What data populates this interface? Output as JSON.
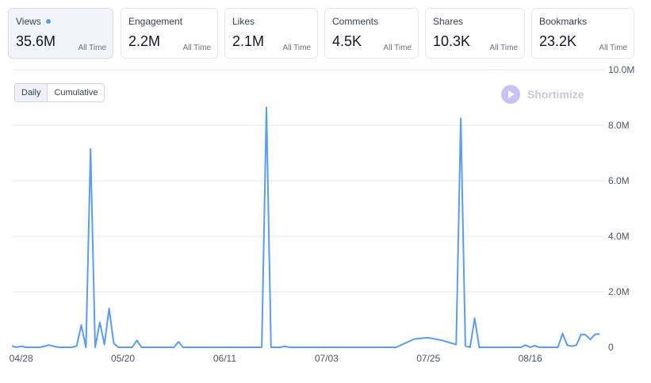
{
  "metrics": [
    {
      "label": "Views",
      "value": "35.6M",
      "period": "All Time",
      "active": true
    },
    {
      "label": "Engagement",
      "value": "2.2M",
      "period": "All Time",
      "active": false
    },
    {
      "label": "Likes",
      "value": "2.1M",
      "period": "All Time",
      "active": false
    },
    {
      "label": "Comments",
      "value": "4.5K",
      "period": "All Time",
      "active": false
    },
    {
      "label": "Shares",
      "value": "10.3K",
      "period": "All Time",
      "active": false
    },
    {
      "label": "Bookmarks",
      "value": "23.2K",
      "period": "All Time",
      "active": false
    }
  ],
  "toggle": {
    "daily": "Daily",
    "cumulative": "Cumulative",
    "selected": "Daily"
  },
  "watermark": {
    "text": "Shortimize"
  },
  "colors": {
    "line": "#5b9cf0",
    "accent_dot": "#5b9cf0",
    "grid": "#e5e7eb"
  },
  "chart_data": {
    "type": "line",
    "title": "",
    "xlabel": "",
    "ylabel": "",
    "ylim": [
      0,
      10000000
    ],
    "yticks": [
      {
        "value": 0,
        "label": "0"
      },
      {
        "value": 2000000,
        "label": "2.0M"
      },
      {
        "value": 4000000,
        "label": "4.0M"
      },
      {
        "value": 6000000,
        "label": "6.0M"
      },
      {
        "value": 8000000,
        "label": "8.0M"
      },
      {
        "value": 10000000,
        "label": "10.0M"
      }
    ],
    "xlim": [
      "2024-04-26",
      "2024-09-01"
    ],
    "xticks": [
      {
        "date": "2024-04-28",
        "label": "04/28"
      },
      {
        "date": "2024-05-20",
        "label": "05/20"
      },
      {
        "date": "2024-06-11",
        "label": "06/11"
      },
      {
        "date": "2024-07-03",
        "label": "07/03"
      },
      {
        "date": "2024-07-25",
        "label": "07/25"
      },
      {
        "date": "2024-08-16",
        "label": "08/16"
      }
    ],
    "grid": true,
    "series": [
      {
        "name": "",
        "points": [
          [
            "2024-04-26",
            50000
          ],
          [
            "2024-04-27",
            0
          ],
          [
            "2024-04-28",
            40000
          ],
          [
            "2024-04-29",
            0
          ],
          [
            "2024-05-02",
            0
          ],
          [
            "2024-05-04",
            80000
          ],
          [
            "2024-05-06",
            0
          ],
          [
            "2024-05-09",
            0
          ],
          [
            "2024-05-10",
            50000
          ],
          [
            "2024-05-11",
            800000
          ],
          [
            "2024-05-12",
            0
          ],
          [
            "2024-05-13",
            7150000
          ],
          [
            "2024-05-14",
            0
          ],
          [
            "2024-05-15",
            900000
          ],
          [
            "2024-05-16",
            100000
          ],
          [
            "2024-05-17",
            1400000
          ],
          [
            "2024-05-18",
            150000
          ],
          [
            "2024-05-19",
            0
          ],
          [
            "2024-05-22",
            0
          ],
          [
            "2024-05-23",
            250000
          ],
          [
            "2024-05-24",
            0
          ],
          [
            "2024-05-31",
            0
          ],
          [
            "2024-06-01",
            200000
          ],
          [
            "2024-06-02",
            0
          ],
          [
            "2024-06-19",
            0
          ],
          [
            "2024-06-20",
            8650000
          ],
          [
            "2024-06-21",
            0
          ],
          [
            "2024-06-23",
            0
          ],
          [
            "2024-06-24",
            40000
          ],
          [
            "2024-06-25",
            0
          ],
          [
            "2024-07-15",
            0
          ],
          [
            "2024-07-18",
            0
          ],
          [
            "2024-07-22",
            300000
          ],
          [
            "2024-07-25",
            350000
          ],
          [
            "2024-07-28",
            250000
          ],
          [
            "2024-07-31",
            100000
          ],
          [
            "2024-08-01",
            8250000
          ],
          [
            "2024-08-02",
            50000
          ],
          [
            "2024-08-03",
            0
          ],
          [
            "2024-08-04",
            1050000
          ],
          [
            "2024-08-05",
            0
          ],
          [
            "2024-08-14",
            0
          ],
          [
            "2024-08-15",
            80000
          ],
          [
            "2024-08-16",
            0
          ],
          [
            "2024-08-17",
            60000
          ],
          [
            "2024-08-18",
            0
          ],
          [
            "2024-08-22",
            0
          ],
          [
            "2024-08-23",
            500000
          ],
          [
            "2024-08-24",
            80000
          ],
          [
            "2024-08-25",
            40000
          ],
          [
            "2024-08-26",
            80000
          ],
          [
            "2024-08-27",
            470000
          ],
          [
            "2024-08-28",
            450000
          ],
          [
            "2024-08-29",
            280000
          ],
          [
            "2024-08-30",
            470000
          ],
          [
            "2024-08-31",
            480000
          ]
        ]
      }
    ]
  }
}
